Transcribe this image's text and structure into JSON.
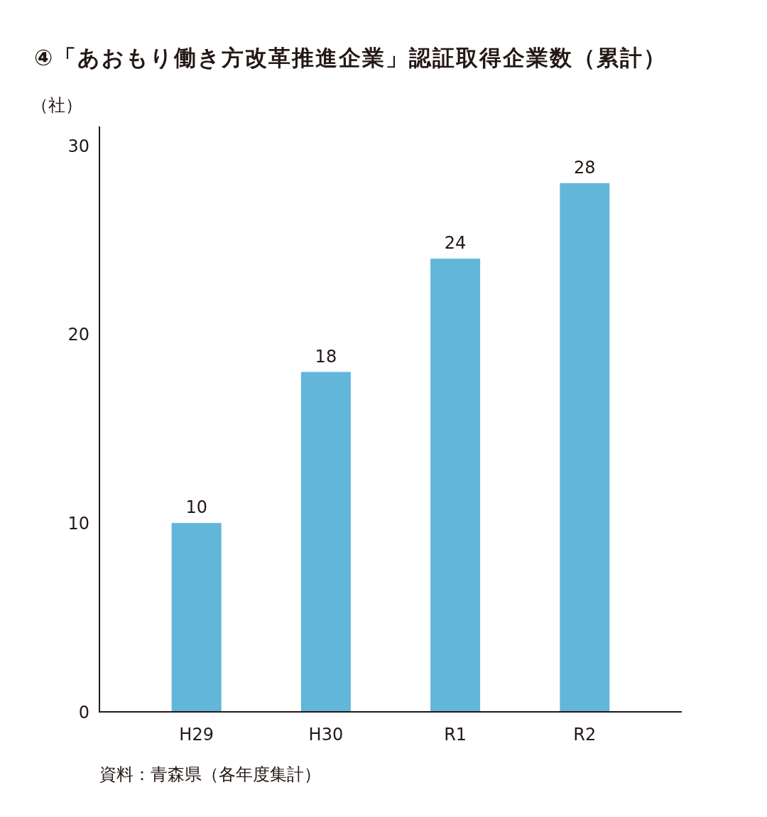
{
  "chart_data": {
    "type": "bar",
    "title": "④「あおもり働き方改革推進企業」認証取得企業数（累計）",
    "ylabel": "（社）",
    "annotations": [
      "資料：青森県（各年度集計）"
    ],
    "categories": [
      "H29",
      "H30",
      "R1",
      "R2"
    ],
    "values": [
      10,
      18,
      24,
      28
    ],
    "color": "#62b6da",
    "ylim": [
      0,
      31
    ],
    "yticks": [
      0,
      10,
      20,
      30
    ],
    "data_labels": true
  }
}
